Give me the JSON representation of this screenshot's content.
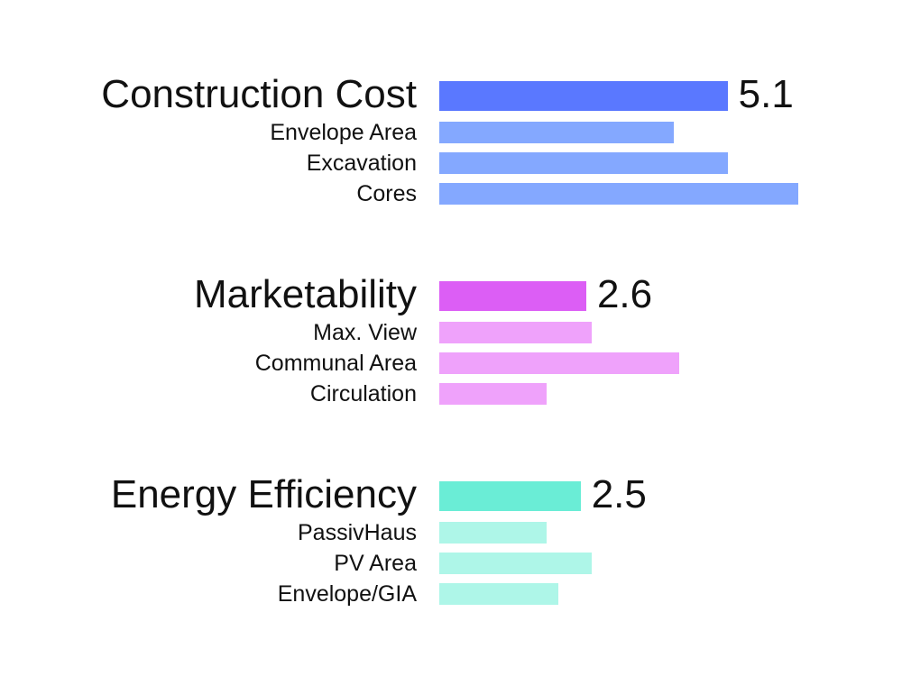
{
  "chart_data": {
    "type": "bar",
    "orientation": "horizontal",
    "title": "",
    "xlabel": "",
    "ylabel": "",
    "xlim": [
      0,
      6.35
    ],
    "grid": false,
    "legend": "none",
    "groups": [
      {
        "label": "Construction Cost",
        "value": 5.1,
        "value_label": "5.1",
        "color": "#5a78ff",
        "sub_color": "#84a8ff",
        "items": [
          {
            "label": "Envelope Area",
            "value": 4.15
          },
          {
            "label": "Excavation",
            "value": 5.1
          },
          {
            "label": "Cores",
            "value": 6.35
          }
        ]
      },
      {
        "label": "Marketability",
        "value": 2.6,
        "value_label": "2.6",
        "color": "#dc5ef5",
        "sub_color": "#efa2fb",
        "items": [
          {
            "label": "Max. View",
            "value": 2.7
          },
          {
            "label": "Communal Area",
            "value": 4.25
          },
          {
            "label": "Circulation",
            "value": 1.9
          }
        ]
      },
      {
        "label": "Energy Efficiency",
        "value": 2.5,
        "value_label": "2.5",
        "color": "#6aedd6",
        "sub_color": "#aef6e8",
        "items": [
          {
            "label": "PassivHaus",
            "value": 1.9
          },
          {
            "label": "PV Area",
            "value": 2.7
          },
          {
            "label": "Envelope/GIA",
            "value": 2.1
          }
        ]
      }
    ]
  }
}
